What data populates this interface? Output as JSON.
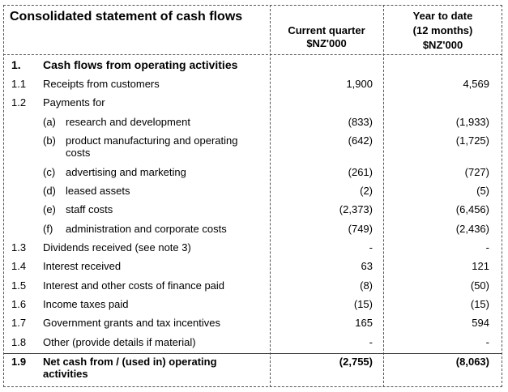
{
  "statement": {
    "title": "Consolidated statement of cash flows",
    "columns": {
      "current": {
        "line1": "Current quarter",
        "line2": "$NZ'000"
      },
      "ytd": {
        "line1": "Year to date",
        "line2": "(12 months)",
        "line3": "$NZ'000"
      }
    },
    "section": {
      "num": "1.",
      "label": "Cash flows from operating activities"
    },
    "rows": [
      {
        "num": "1.1",
        "label": "Receipts from customers",
        "current": "1,900",
        "ytd": "4,569"
      },
      {
        "num": "1.2",
        "label": "Payments for",
        "current": "",
        "ytd": ""
      },
      {
        "num": "",
        "sub": "(a)",
        "label": "research and development",
        "current": "(833)",
        "ytd": "(1,933)"
      },
      {
        "num": "",
        "sub": "(b)",
        "label": "product manufacturing and operating costs",
        "current": "(642)",
        "ytd": "(1,725)"
      },
      {
        "num": "",
        "sub": "(c)",
        "label": "advertising and marketing",
        "current": "(261)",
        "ytd": "(727)"
      },
      {
        "num": "",
        "sub": "(d)",
        "label": "leased assets",
        "current": "(2)",
        "ytd": "(5)"
      },
      {
        "num": "",
        "sub": "(e)",
        "label": "staff costs",
        "current": "(2,373)",
        "ytd": "(6,456)"
      },
      {
        "num": "",
        "sub": "(f)",
        "label": "administration and corporate costs",
        "current": "(749)",
        "ytd": "(2,436)"
      },
      {
        "num": "1.3",
        "label": "Dividends received (see note 3)",
        "current": "-",
        "ytd": "-"
      },
      {
        "num": "1.4",
        "label": "Interest received",
        "current": "63",
        "ytd": "121"
      },
      {
        "num": "1.5",
        "label": "Interest and other costs of finance paid",
        "current": "(8)",
        "ytd": "(50)"
      },
      {
        "num": "1.6",
        "label": "Income taxes paid",
        "current": "(15)",
        "ytd": "(15)"
      },
      {
        "num": "1.7",
        "label": "Government grants and tax incentives",
        "current": "165",
        "ytd": "594"
      },
      {
        "num": "1.8",
        "label": "Other (provide details if material)",
        "current": "-",
        "ytd": "-"
      }
    ],
    "total": {
      "num": "1.9",
      "label": "Net cash from / (used in) operating activities",
      "current": "(2,755)",
      "ytd": "(8,063)"
    }
  }
}
